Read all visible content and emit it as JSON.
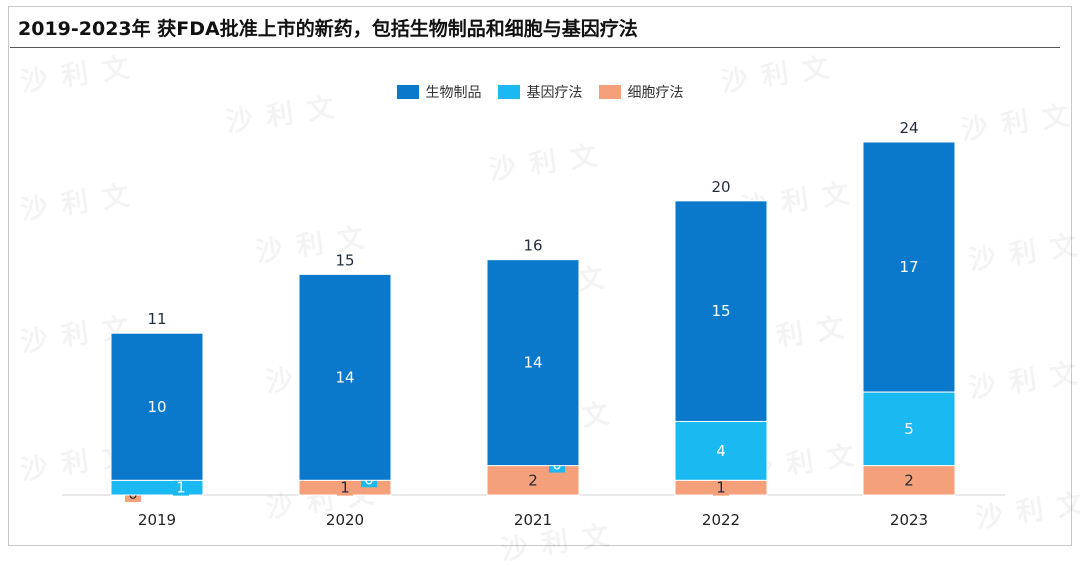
{
  "title": "2019-2023年 获FDA批准上市的新药，包括生物制品和细胞与基因疗法",
  "colors": {
    "biologics": "#0a79cc",
    "gene_therapy": "#1ab9f2",
    "cell_therapy": "#f4a07a",
    "label_dark": "#1f2d3d",
    "label_light": "#ffffff"
  },
  "watermark_text": "沙利文",
  "chart_data": {
    "type": "bar",
    "stacked": true,
    "categories": [
      "2019",
      "2020",
      "2021",
      "2022",
      "2023"
    ],
    "series": [
      {
        "key": "cell_therapy",
        "name": "细胞疗法",
        "values": [
          0,
          1,
          2,
          1,
          2
        ]
      },
      {
        "key": "gene_therapy",
        "name": "基因疗法",
        "values": [
          1,
          0,
          0,
          4,
          5
        ]
      },
      {
        "key": "biologics",
        "name": "生物制品",
        "values": [
          10,
          14,
          14,
          15,
          17
        ]
      }
    ],
    "totals": [
      11,
      15,
      16,
      20,
      24
    ],
    "legend_order": [
      "biologics",
      "gene_therapy",
      "cell_therapy"
    ],
    "legend_position": "top-center",
    "ylim": [
      0,
      24
    ],
    "grid": false,
    "xlabel": "",
    "ylabel": ""
  }
}
